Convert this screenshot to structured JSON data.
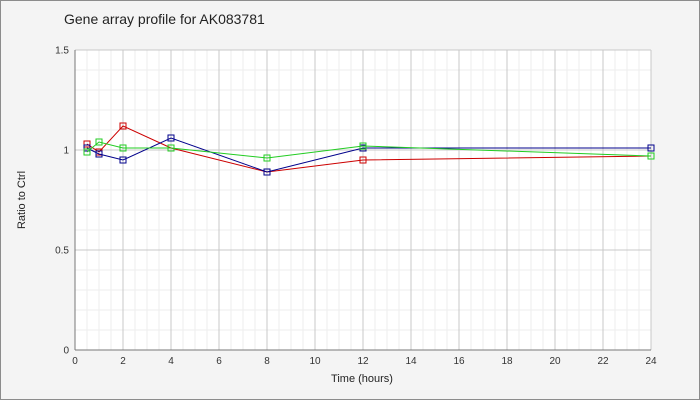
{
  "chart_data": {
    "type": "line",
    "title": "Gene array profile for AK083781",
    "xlabel": "Time (hours)",
    "ylabel": "Ratio to Ctrl",
    "xlim": [
      0,
      24
    ],
    "ylim": [
      0,
      1.5
    ],
    "x_ticks": [
      "0",
      "2",
      "4",
      "6",
      "8",
      "10",
      "12",
      "14",
      "16",
      "18",
      "20",
      "22",
      "24"
    ],
    "y_ticks": [
      "0",
      "0.5",
      "1",
      "1.5"
    ],
    "grid": true,
    "legend": "none",
    "marker": "open-square",
    "series": [
      {
        "color": "#cc0000",
        "x": [
          0.5,
          1,
          2,
          4,
          8,
          12,
          24
        ],
        "values": [
          1.03,
          0.99,
          1.12,
          1.01,
          0.89,
          0.95,
          0.97
        ]
      },
      {
        "color": "#00008b",
        "x": [
          0.5,
          1,
          2,
          4,
          8,
          12,
          24
        ],
        "values": [
          1.01,
          0.98,
          0.95,
          1.06,
          0.89,
          1.01,
          1.01
        ]
      },
      {
        "color": "#22cc22",
        "x": [
          0.5,
          1,
          2,
          4,
          8,
          12,
          24
        ],
        "values": [
          0.99,
          1.04,
          1.01,
          1.01,
          0.96,
          1.02,
          0.97
        ]
      }
    ]
  }
}
